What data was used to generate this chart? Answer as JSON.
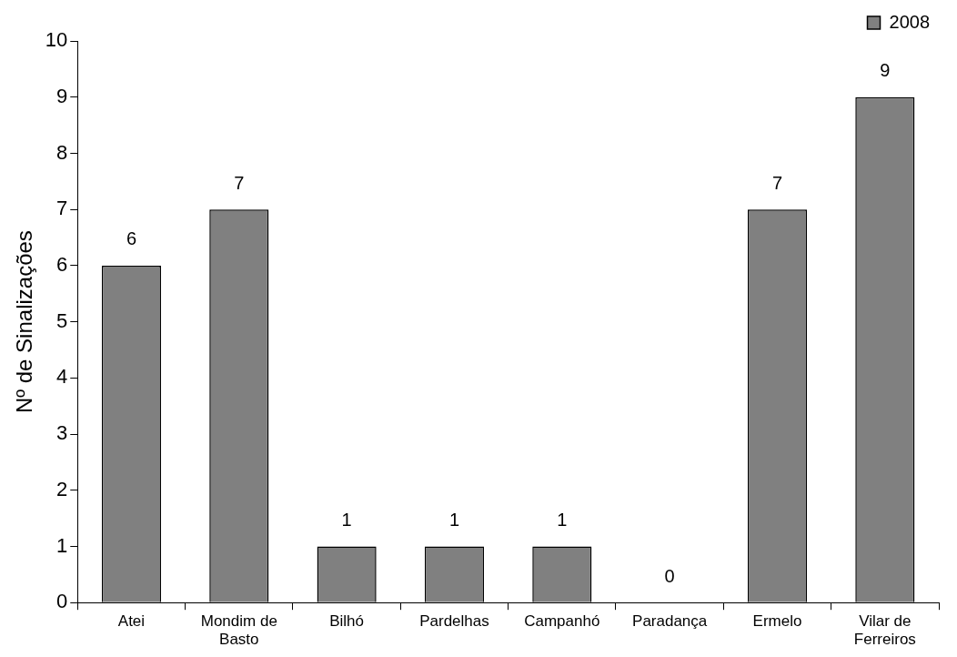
{
  "chart_data": {
    "type": "bar",
    "ylabel": "Nº de Sinalizações",
    "categories": [
      "Atei",
      "Mondim de Basto",
      "Bilhó",
      "Pardelhas",
      "Campanhó",
      "Paradança",
      "Ermelo",
      "Vilar de Ferreiros"
    ],
    "series": [
      {
        "name": "2008",
        "color": "#808080",
        "values": [
          6,
          7,
          1,
          1,
          1,
          0,
          7,
          9
        ]
      }
    ],
    "ylim": [
      0,
      10
    ],
    "yticks": [
      0,
      1,
      2,
      3,
      4,
      5,
      6,
      7,
      8,
      9,
      10
    ],
    "grid": false,
    "legend": "top right",
    "data_labels": true
  }
}
